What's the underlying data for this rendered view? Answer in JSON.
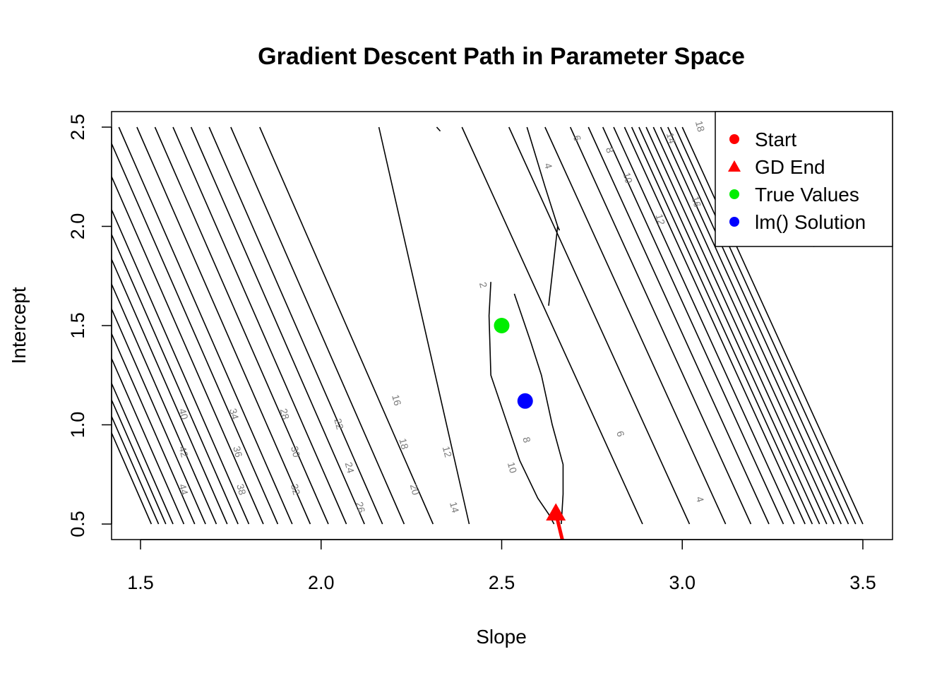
{
  "chart_data": {
    "type": "contour",
    "title": "Gradient Descent Path in Parameter Space",
    "xlabel": "Slope",
    "ylabel": "Intercept",
    "xlim": [
      1.5,
      3.5
    ],
    "ylim": [
      0.5,
      2.5
    ],
    "x_ticks": [
      "1.5",
      "2.0",
      "2.5",
      "3.0",
      "3.5"
    ],
    "y_ticks": [
      "0.5",
      "1.0",
      "1.5",
      "2.0",
      "2.5"
    ],
    "contour_levels": [
      2,
      4,
      6,
      8,
      10,
      12,
      14,
      16,
      18,
      20,
      22,
      24,
      26,
      28,
      30,
      32,
      34,
      36,
      38,
      40,
      42,
      44
    ],
    "contour_labels_left": [
      "44",
      "42",
      "40",
      "38",
      "36",
      "34",
      "32",
      "30",
      "28",
      "26",
      "24",
      "22",
      "20",
      "18",
      "16",
      "14",
      "12",
      "10",
      "8",
      "6",
      "4",
      "2"
    ],
    "contour_labels_right": [
      "4",
      "6",
      "8",
      "10",
      "12",
      "14",
      "16",
      "18",
      "32"
    ],
    "points": [
      {
        "name": "True Values",
        "x": 2.5,
        "y": 1.5,
        "color": "#00ee00",
        "shape": "circle"
      },
      {
        "name": "lm() Solution",
        "x": 2.565,
        "y": 1.12,
        "color": "#0000ff",
        "shape": "circle"
      },
      {
        "name": "GD End",
        "x": 2.65,
        "y": 0.555,
        "color": "#ff0000",
        "shape": "triangle"
      }
    ],
    "path": {
      "color": "#ff0000",
      "x": [
        2.65,
        2.668
      ],
      "y": [
        0.555,
        0.42
      ]
    },
    "legend": {
      "position": "top-right",
      "entries": [
        {
          "label": "Start",
          "color": "#ff0000",
          "shape": "circle"
        },
        {
          "label": "GD End",
          "color": "#ff0000",
          "shape": "triangle"
        },
        {
          "label": "True Values",
          "color": "#00ee00",
          "shape": "circle"
        },
        {
          "label": "lm() Solution",
          "color": "#0000ff",
          "shape": "circle"
        }
      ]
    }
  }
}
